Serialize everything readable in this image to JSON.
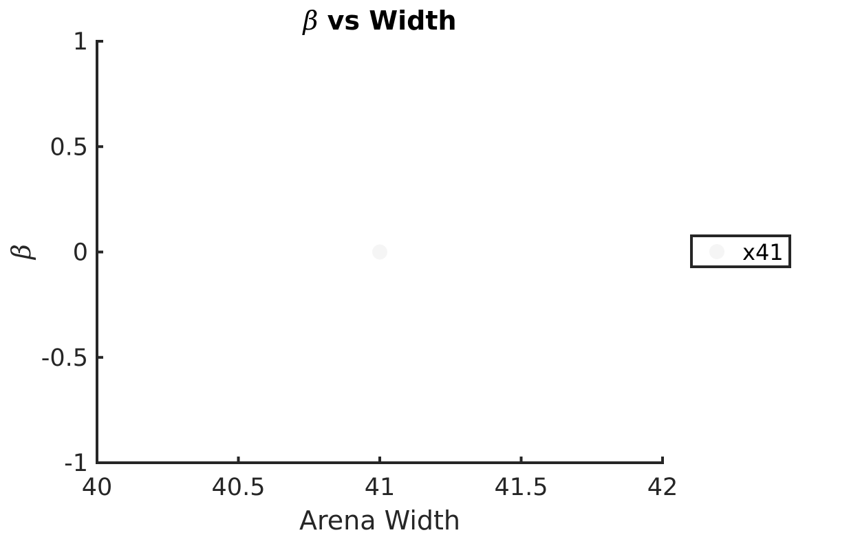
{
  "chart_data": {
    "type": "scatter",
    "title_symbol": "β",
    "title_text": " vs Width",
    "xlabel": "Arena Width",
    "ylabel": "β",
    "xlim": [
      40,
      42
    ],
    "ylim": [
      -1,
      1
    ],
    "x_ticks": [
      40,
      40.5,
      41,
      41.5,
      42
    ],
    "x_tick_labels": [
      "40",
      "40.5",
      "41",
      "41.5",
      "42"
    ],
    "y_ticks": [
      1,
      0.5,
      0,
      -0.5,
      -1
    ],
    "y_tick_labels": [
      "1",
      "0.5",
      "0",
      "-0.5",
      "-1"
    ],
    "grid": false,
    "legend_position": "outside-right",
    "series": [
      {
        "name": "x41",
        "color": "#f5f5f5",
        "points": [
          {
            "x": 41,
            "y": 0
          }
        ]
      }
    ]
  }
}
